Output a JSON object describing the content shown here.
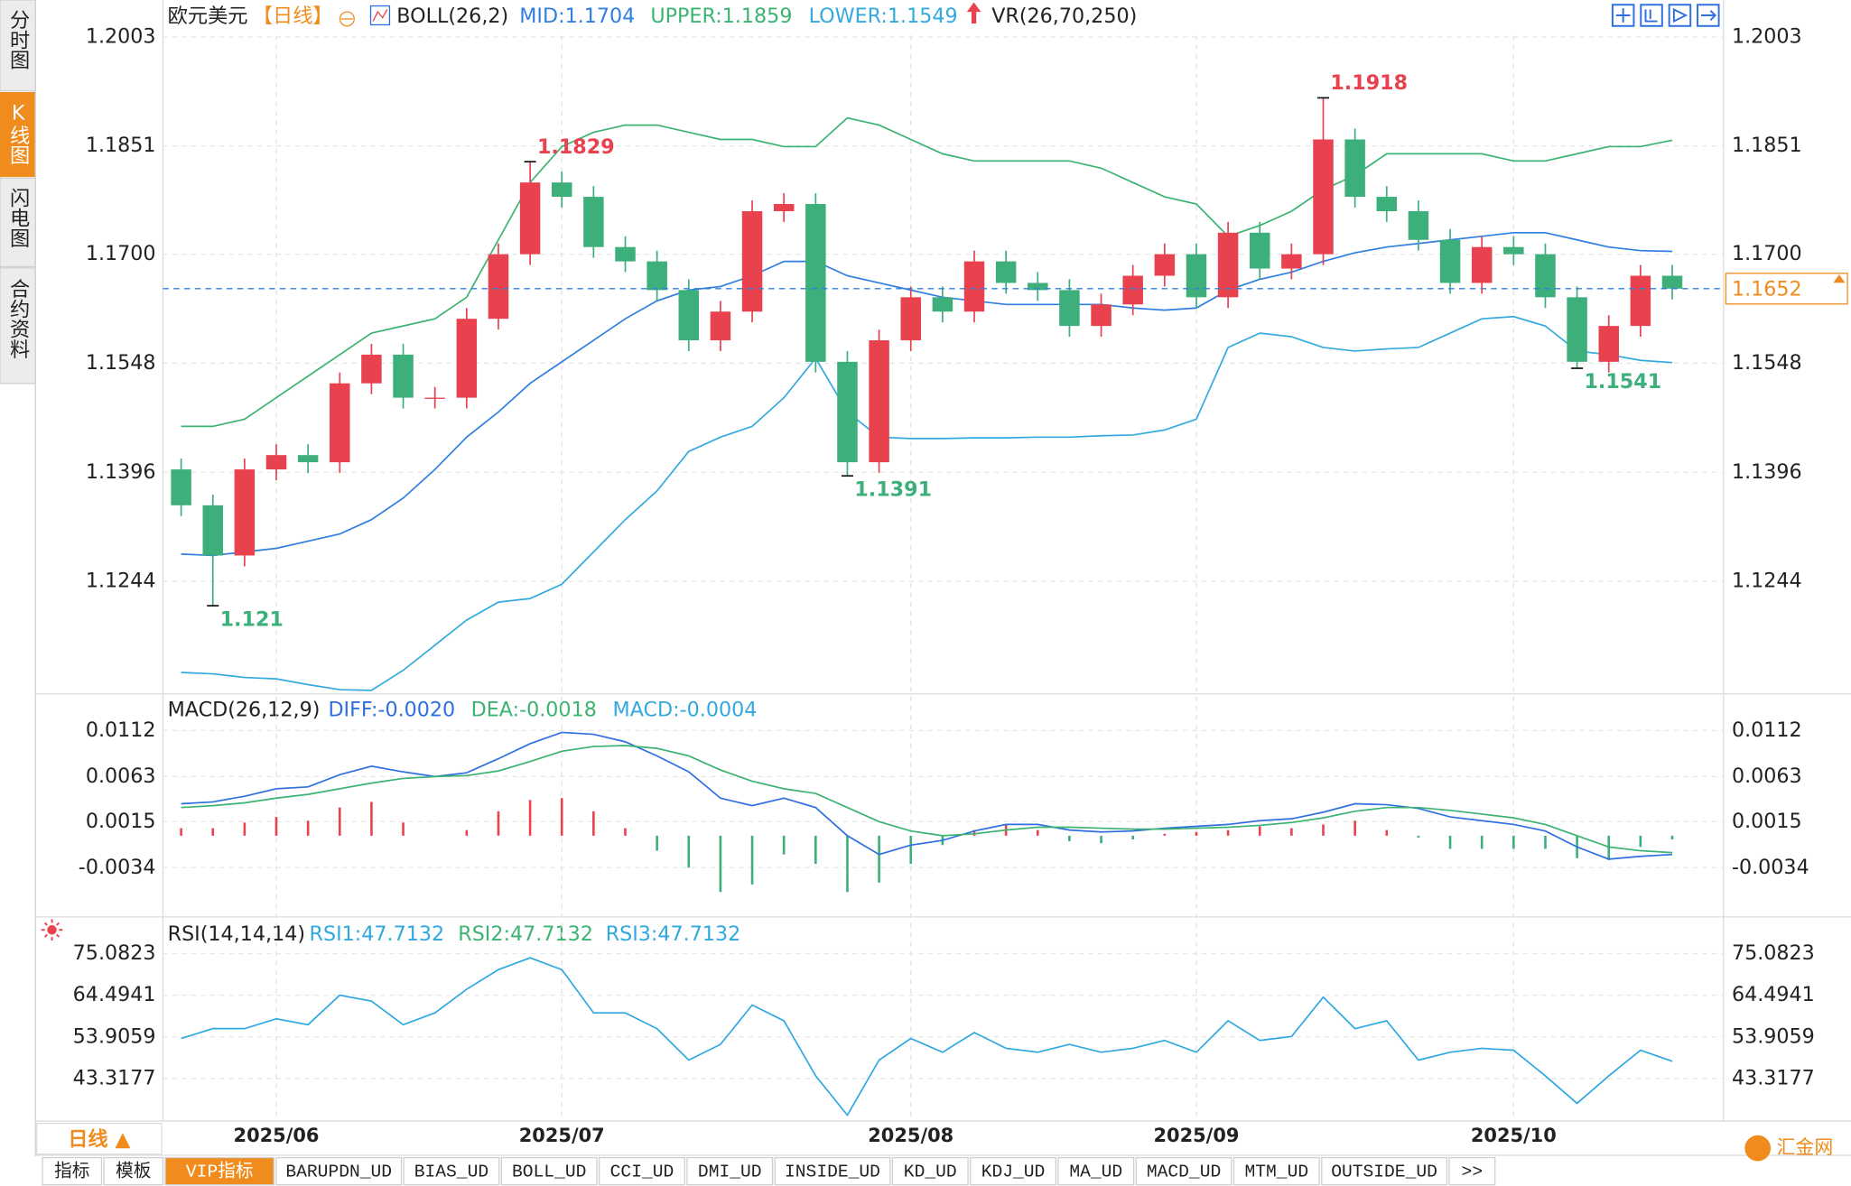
{
  "ui": {
    "sidebar_tabs": [
      "分时图",
      "K线图",
      "闪电图",
      "合约资料"
    ],
    "period_button": "日线 ▲",
    "bottom_tabs": [
      "指标",
      "模板",
      "VIP指标",
      "BARUPDN_UD",
      "BIAS_UD",
      "BOLL_UD",
      "CCI_UD",
      "DMI_UD",
      "INSIDE_UD",
      "KD_UD",
      "KDJ_UD",
      "MA_UD",
      "MACD_UD",
      "MTM_UD",
      "OUTSIDE_UD",
      ">>"
    ],
    "logo": "汇金网"
  },
  "chart_data": [
    {
      "type": "candlestick",
      "title": "欧元美元",
      "period": "【日线】",
      "indicator": "BOLL(26,2)",
      "extra_indicator": "VR(26,70,250)",
      "categories": [
        null,
        null,
        null,
        "2025/06",
        null,
        null,
        null,
        null,
        null,
        null,
        null,
        null,
        "2025/07",
        null,
        null,
        null,
        null,
        null,
        null,
        null,
        null,
        null,
        null,
        "2025/08",
        null,
        null,
        null,
        null,
        null,
        null,
        null,
        null,
        "2025/09",
        null,
        null,
        null,
        null,
        null,
        null,
        null,
        null,
        null,
        "2025/10",
        null,
        null,
        null,
        null,
        null
      ],
      "open": [
        1.14,
        1.135,
        1.128,
        1.14,
        1.142,
        1.141,
        1.152,
        1.156,
        1.15,
        1.15,
        1.161,
        1.17,
        1.18,
        1.178,
        1.171,
        1.169,
        1.165,
        1.158,
        1.162,
        1.176,
        1.177,
        1.155,
        1.141,
        1.158,
        1.164,
        1.162,
        1.169,
        1.166,
        1.165,
        1.16,
        1.163,
        1.167,
        1.17,
        1.164,
        1.173,
        1.168,
        1.17,
        1.186,
        1.178,
        1.176,
        1.172,
        1.166,
        1.171,
        1.17,
        1.164,
        1.155,
        1.16,
        1.167
      ],
      "high": [
        1.1415,
        1.1365,
        1.1415,
        1.1435,
        1.1435,
        1.1535,
        1.1575,
        1.1575,
        1.1515,
        1.1625,
        1.1715,
        1.1829,
        1.1815,
        1.1795,
        1.1725,
        1.1705,
        1.1665,
        1.1635,
        1.1775,
        1.1785,
        1.1785,
        1.1565,
        1.1595,
        1.1655,
        1.1655,
        1.1705,
        1.1705,
        1.1675,
        1.1665,
        1.1645,
        1.1685,
        1.1715,
        1.1715,
        1.1745,
        1.1745,
        1.1715,
        1.1918,
        1.1875,
        1.1795,
        1.1775,
        1.1735,
        1.1725,
        1.1725,
        1.1715,
        1.1655,
        1.1615,
        1.1685,
        1.1685
      ],
      "low": [
        1.1335,
        1.121,
        1.1265,
        1.1385,
        1.1395,
        1.1395,
        1.1505,
        1.1485,
        1.1485,
        1.1485,
        1.1595,
        1.1685,
        1.1765,
        1.1695,
        1.1675,
        1.1635,
        1.1565,
        1.1565,
        1.1605,
        1.1745,
        1.1535,
        1.1391,
        1.1395,
        1.1565,
        1.1605,
        1.1605,
        1.1645,
        1.1635,
        1.1585,
        1.1585,
        1.1615,
        1.1655,
        1.1625,
        1.1625,
        1.1665,
        1.1665,
        1.1685,
        1.1765,
        1.1745,
        1.1705,
        1.1645,
        1.1645,
        1.1685,
        1.1625,
        1.1541,
        1.1535,
        1.1585,
        1.1637
      ],
      "close": [
        1.135,
        1.128,
        1.14,
        1.142,
        1.141,
        1.152,
        1.156,
        1.15,
        1.15,
        1.161,
        1.17,
        1.18,
        1.178,
        1.171,
        1.169,
        1.165,
        1.158,
        1.162,
        1.176,
        1.177,
        1.155,
        1.141,
        1.158,
        1.164,
        1.162,
        1.169,
        1.166,
        1.165,
        1.16,
        1.163,
        1.167,
        1.17,
        1.164,
        1.173,
        1.168,
        1.17,
        1.186,
        1.178,
        1.176,
        1.172,
        1.166,
        1.171,
        1.17,
        1.164,
        1.155,
        1.16,
        1.167,
        1.1652
      ],
      "up_color": "#e8424f",
      "down_color": "#3daf7a",
      "series": [
        {
          "name": "MID:1.1704",
          "color": "#2f7fe0",
          "values": [
            1.1282,
            1.128,
            1.1285,
            1.129,
            1.13,
            1.131,
            1.133,
            1.136,
            1.14,
            1.1445,
            1.148,
            1.152,
            1.155,
            1.158,
            1.161,
            1.1635,
            1.165,
            1.1655,
            1.167,
            1.169,
            1.169,
            1.167,
            1.166,
            1.165,
            1.164,
            1.1635,
            1.163,
            1.163,
            1.163,
            1.163,
            1.1625,
            1.1622,
            1.1625,
            1.165,
            1.1665,
            1.1675,
            1.169,
            1.1702,
            1.171,
            1.1715,
            1.172,
            1.1725,
            1.173,
            1.173,
            1.172,
            1.171,
            1.1705,
            1.1704
          ]
        },
        {
          "name": "UPPER:1.1859",
          "color": "#3cb371",
          "values": [
            1.146,
            1.146,
            1.147,
            1.15,
            1.153,
            1.156,
            1.159,
            1.16,
            1.161,
            1.164,
            1.172,
            1.18,
            1.185,
            1.187,
            1.188,
            1.188,
            1.187,
            1.186,
            1.186,
            1.185,
            1.185,
            1.189,
            1.188,
            1.186,
            1.184,
            1.183,
            1.183,
            1.183,
            1.183,
            1.182,
            1.18,
            1.178,
            1.177,
            1.1725,
            1.174,
            1.176,
            1.179,
            1.181,
            1.184,
            1.184,
            1.184,
            1.184,
            1.183,
            1.183,
            1.184,
            1.185,
            1.185,
            1.1859
          ]
        },
        {
          "name": "LOWER:1.1549",
          "color": "#33aadd",
          "values": [
            1.1117,
            1.1115,
            1.111,
            1.1108,
            1.11,
            1.1093,
            1.1092,
            1.112,
            1.1155,
            1.119,
            1.1215,
            1.122,
            1.124,
            1.1285,
            1.133,
            1.137,
            1.1425,
            1.1445,
            1.146,
            1.15,
            1.1555,
            1.148,
            1.1445,
            1.1443,
            1.1443,
            1.1444,
            1.1444,
            1.1445,
            1.1445,
            1.1447,
            1.1448,
            1.1455,
            1.147,
            1.157,
            1.159,
            1.1585,
            1.157,
            1.1565,
            1.1568,
            1.157,
            1.159,
            1.161,
            1.1613,
            1.16,
            1.1565,
            1.156,
            1.1552,
            1.1549
          ]
        }
      ],
      "ylim": [
        1.1092,
        1.2005
      ],
      "yticks": [
        1.2003,
        1.1851,
        {
          "value": 1.17,
          "label": "1.1700"
        },
        1.1548,
        1.1396,
        1.1244
      ],
      "grid": true,
      "current_price": 1.1652,
      "extremes": [
        {
          "index": 11,
          "kind": "high",
          "value": 1.1829,
          "color": "#e8424f"
        },
        {
          "index": 36,
          "kind": "high",
          "value": 1.1918,
          "color": "#e8424f"
        },
        {
          "index": 1,
          "kind": "low",
          "value": 1.121,
          "color": "#3daf7a"
        },
        {
          "index": 21,
          "kind": "low",
          "value": 1.1391,
          "color": "#3daf7a"
        },
        {
          "index": 44,
          "kind": "low",
          "value": 1.1541,
          "color": "#3daf7a"
        }
      ]
    },
    {
      "type": "macd",
      "title": "MACD(26,12,9)",
      "series": [
        {
          "name": "DIFF:-0.0020",
          "color": "#2f6fe0",
          "values": [
            0.0034,
            0.0036,
            0.0042,
            0.005,
            0.0052,
            0.0065,
            0.0074,
            0.0068,
            0.0063,
            0.0067,
            0.0082,
            0.0098,
            0.011,
            0.0108,
            0.01,
            0.0085,
            0.0068,
            0.004,
            0.0032,
            0.004,
            0.003,
            0.0,
            -0.002,
            -0.001,
            -0.0005,
            0.0005,
            0.0012,
            0.0012,
            0.0006,
            0.0004,
            0.0005,
            0.0008,
            0.001,
            0.0012,
            0.0016,
            0.0018,
            0.0025,
            0.0034,
            0.0033,
            0.0029,
            0.002,
            0.0016,
            0.0012,
            0.0005,
            -0.0012,
            -0.0025,
            -0.0022,
            -0.002
          ]
        },
        {
          "name": "DEA:-0.0018",
          "color": "#3cb371",
          "values": [
            0.003,
            0.0032,
            0.0035,
            0.004,
            0.0044,
            0.005,
            0.0056,
            0.0061,
            0.0063,
            0.0064,
            0.0069,
            0.0079,
            0.009,
            0.0095,
            0.0096,
            0.0093,
            0.0085,
            0.007,
            0.0058,
            0.005,
            0.0045,
            0.003,
            0.0015,
            0.0005,
            0.0,
            0.0002,
            0.0006,
            0.0009,
            0.0009,
            0.0008,
            0.0007,
            0.0007,
            0.0008,
            0.0009,
            0.0011,
            0.0014,
            0.0019,
            0.0026,
            0.003,
            0.003,
            0.0027,
            0.0023,
            0.0019,
            0.0012,
            0.0,
            -0.0012,
            -0.0016,
            -0.0018
          ]
        },
        {
          "name": "MACD:-0.0004",
          "color": "#33aadd",
          "kind": "bar",
          "up_color": "#e8424f",
          "down_color": "#3daf7a",
          "values": [
            0.0008,
            0.0008,
            0.0014,
            0.002,
            0.0016,
            0.003,
            0.0036,
            0.0014,
            0.0,
            0.0006,
            0.0026,
            0.0038,
            0.004,
            0.0026,
            0.0008,
            -0.0016,
            -0.0034,
            -0.006,
            -0.0052,
            -0.002,
            -0.003,
            -0.006,
            -0.005,
            -0.003,
            -0.001,
            0.0006,
            0.0012,
            0.0006,
            -0.0006,
            -0.0008,
            -0.0004,
            0.0002,
            0.0004,
            0.0006,
            0.001,
            0.0008,
            0.0012,
            0.0016,
            0.0006,
            -0.0002,
            -0.0014,
            -0.0014,
            -0.0014,
            -0.0014,
            -0.0024,
            -0.0026,
            -0.0012,
            -0.0004
          ]
        }
      ],
      "ylim": [
        -0.0084,
        0.0146
      ],
      "yticks": [
        0.0112,
        0.0063,
        0.0015,
        -0.0034
      ],
      "grid": true
    },
    {
      "type": "line",
      "title": "RSI(14,14,14)",
      "series": [
        {
          "name": "RSI1:47.7132",
          "color": "#2fa8e0",
          "values": [
            53.5,
            56,
            56,
            58.5,
            57,
            64.5,
            63,
            57,
            60,
            66,
            71,
            74,
            71,
            60,
            60,
            56,
            48,
            52,
            62,
            58,
            44,
            34,
            48,
            53.5,
            50,
            55,
            51,
            50,
            52,
            50,
            51,
            53,
            50,
            58,
            53,
            54,
            64,
            56,
            58,
            48,
            50,
            51,
            50.5,
            44,
            37,
            44,
            50.5,
            47.7132
          ]
        },
        {
          "name": "RSI2:47.7132",
          "color": "#3cb371"
        },
        {
          "name": "RSI3:47.7132",
          "color": "#2fa8e0"
        }
      ],
      "ylim": [
        32.5,
        82.9
      ],
      "yticks": [
        75.0823,
        64.4941,
        53.9059,
        43.3177
      ],
      "grid": true
    }
  ]
}
